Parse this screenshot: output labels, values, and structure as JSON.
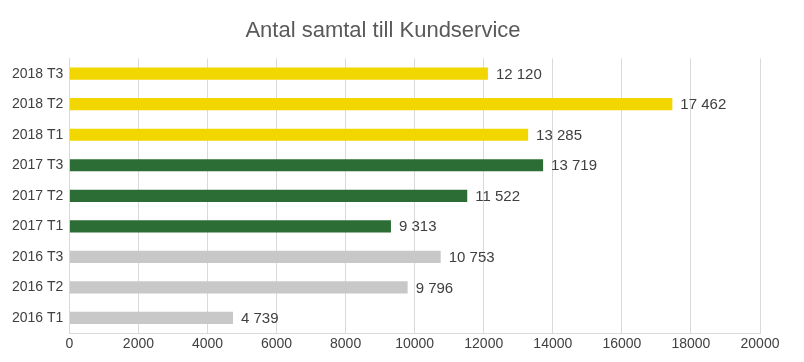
{
  "chart_data": {
    "type": "bar",
    "title": "Antal samtal till Kundservice",
    "orientation": "horizontal",
    "categories": [
      "2018 T3",
      "2018 T2",
      "2018 T1",
      "2017 T3",
      "2017 T2",
      "2017 T1",
      "2016 T3",
      "2016 T2",
      "2016 T1"
    ],
    "values": [
      12120,
      17462,
      13285,
      13719,
      11522,
      9313,
      10753,
      9796,
      4739
    ],
    "value_labels": [
      "12 120",
      "17 462",
      "13 285",
      "13 719",
      "11 522",
      "9 313",
      "10 753",
      "9 796",
      "4 739"
    ],
    "colors": [
      "#f2d600",
      "#f2d600",
      "#f2d600",
      "#2b6d35",
      "#2b6d35",
      "#2b6d35",
      "#c8c8c8",
      "#c8c8c8",
      "#c8c8c8"
    ],
    "xlim": [
      0,
      20000
    ],
    "xticks": [
      0,
      2000,
      4000,
      6000,
      8000,
      10000,
      12000,
      14000,
      16000,
      18000,
      20000
    ],
    "grid": true,
    "data_labels": true
  }
}
